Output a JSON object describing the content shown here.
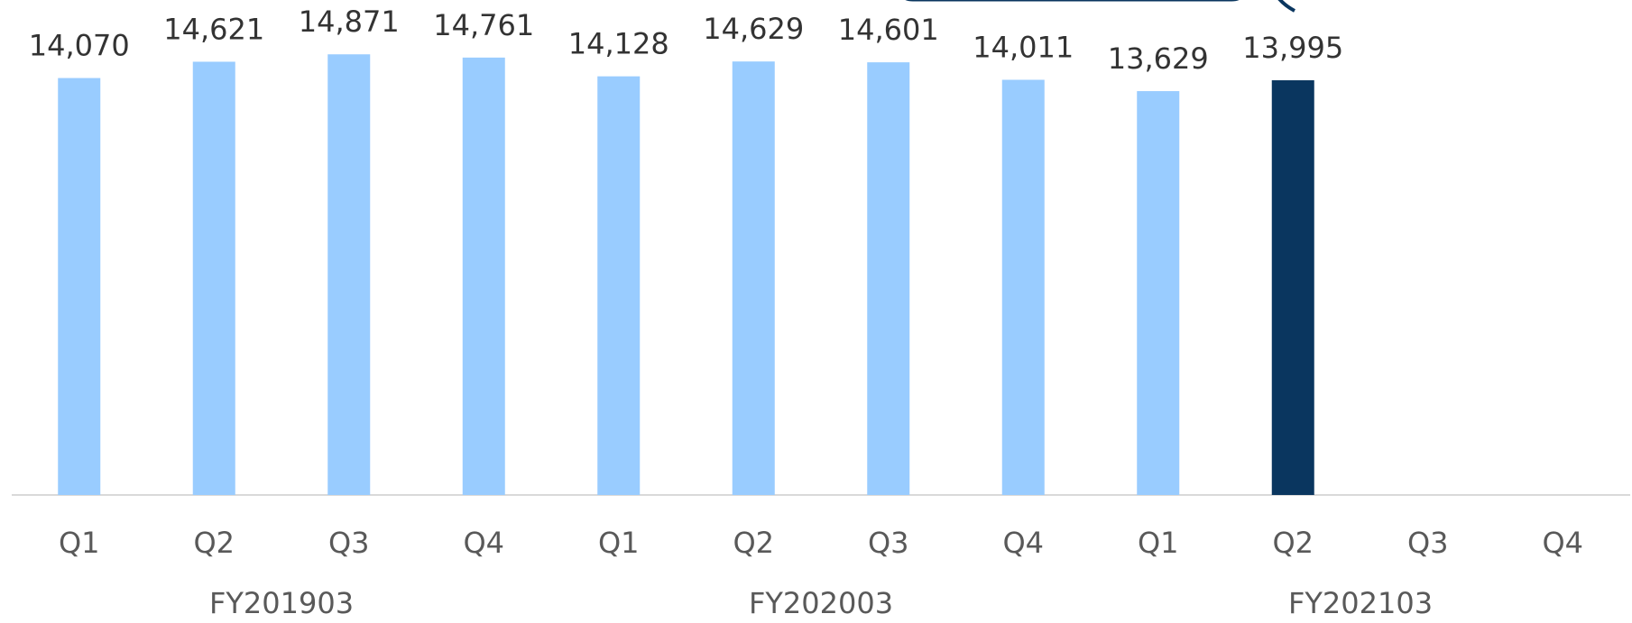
{
  "chart_data": {
    "type": "bar",
    "categories": [
      "Q1",
      "Q2",
      "Q3",
      "Q4",
      "Q1",
      "Q2",
      "Q3",
      "Q4",
      "Q1",
      "Q2",
      "Q3",
      "Q4"
    ],
    "groups": [
      "FY201903",
      "FY202003",
      "FY202103"
    ],
    "values": [
      14070,
      14621,
      14871,
      14761,
      14128,
      14629,
      14601,
      14011,
      13629,
      13995,
      null,
      null
    ],
    "value_labels": [
      "14,070",
      "14,621",
      "14,871",
      "14,761",
      "14,128",
      "14,629",
      "14,601",
      "14,011",
      "13,629",
      "13,995",
      null,
      null
    ],
    "colors": [
      "#99ccff",
      "#99ccff",
      "#99ccff",
      "#99ccff",
      "#99ccff",
      "#99ccff",
      "#99ccff",
      "#99ccff",
      "#99ccff",
      "#0a365f",
      null,
      null
    ],
    "ylim": [
      0,
      15000
    ]
  }
}
